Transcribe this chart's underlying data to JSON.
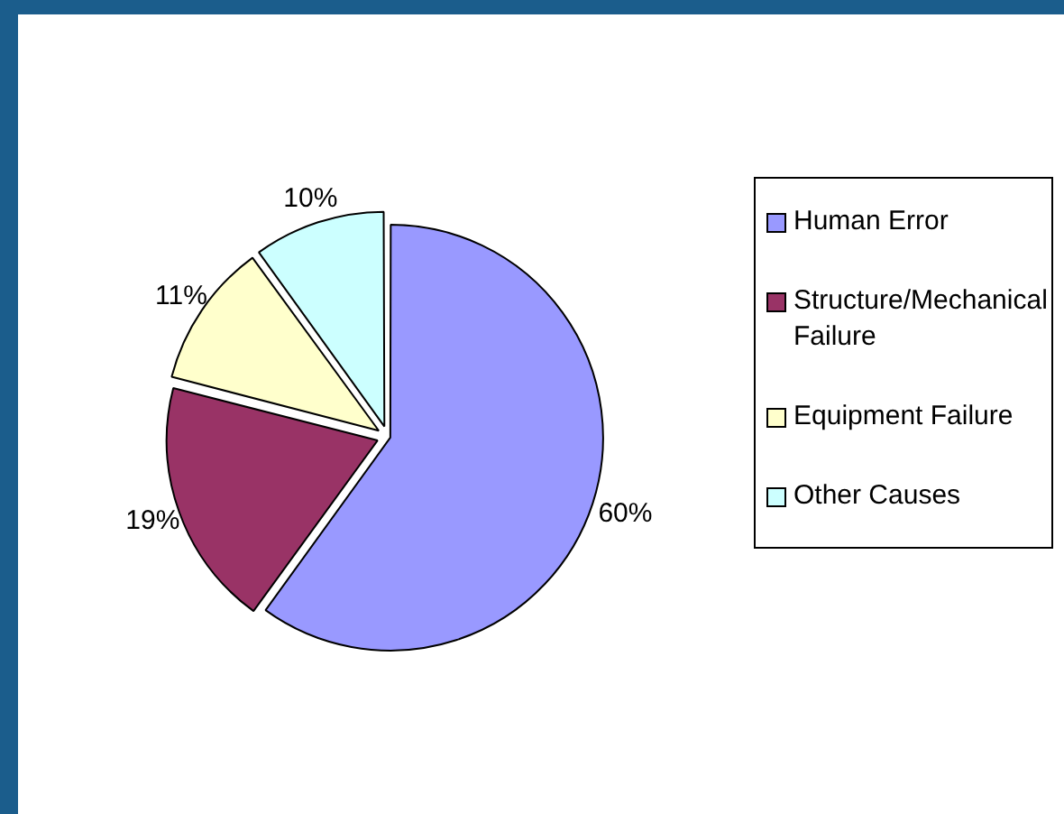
{
  "chart_data": {
    "type": "pie",
    "categories": [
      "Human Error",
      "Structure/Mechanical Failure",
      "Equipment Failure",
      "Other Causes"
    ],
    "values": [
      60,
      19,
      11,
      10
    ],
    "colors": [
      "#9999ff",
      "#993366",
      "#ffffcc",
      "#ccffff"
    ],
    "value_labels": [
      "60%",
      "19%",
      "11%",
      "10%"
    ],
    "legend": "right"
  }
}
